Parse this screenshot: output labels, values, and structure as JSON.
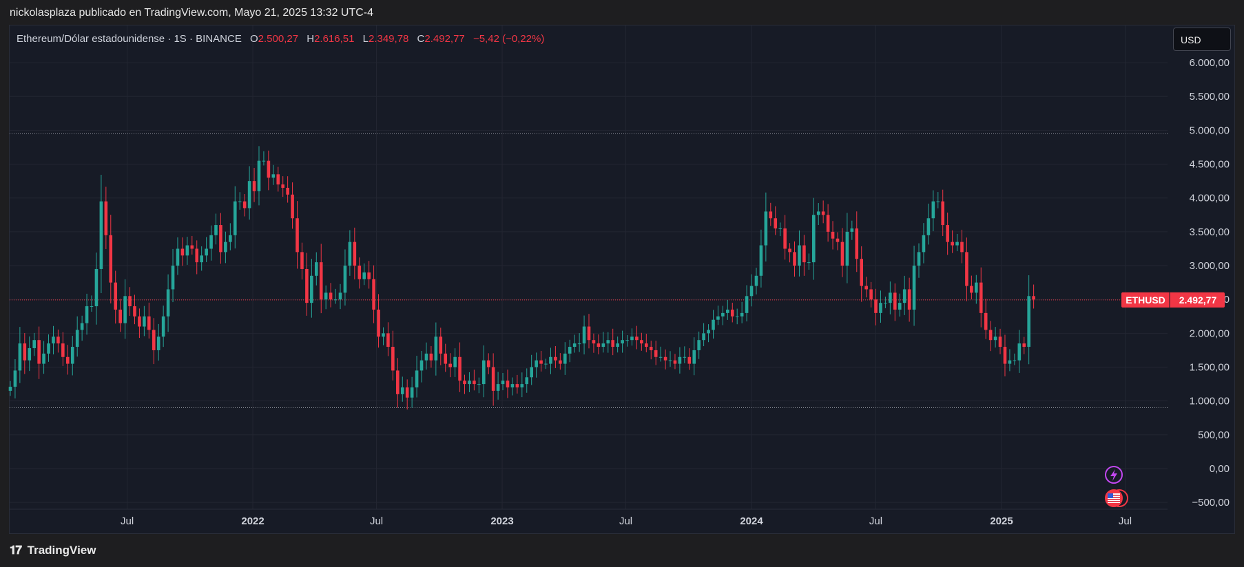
{
  "header": {
    "publisher_line": "nickolasplaza publicado en TradingView.com, Mayo 21, 2025 13:32 UTC-4"
  },
  "legend": {
    "symbol": "Ethereum/Dólar estadounidense · 1S · BINANCE",
    "o_label": "O",
    "o_value": "2.500,27",
    "h_label": "H",
    "h_value": "2.616,51",
    "l_label": "L",
    "l_value": "2.349,78",
    "c_label": "C",
    "c_value": "2.492,77",
    "change": "−5,42 (−0,22%)"
  },
  "currency_button": "USD",
  "price_tag": {
    "symbol": "ETHUSD",
    "value": "2.492,77"
  },
  "footer": {
    "logo_text": "TradingView"
  },
  "colors": {
    "up": "#26a69a",
    "down": "#f23645",
    "background": "#171b26",
    "grid": "#232632",
    "price_line": "#f23645",
    "level_line": "#9598a1"
  },
  "icons": [
    "lightning-event-icon",
    "us-flag-event-icon"
  ],
  "chart_data": {
    "type": "candlestick",
    "interval": "1S",
    "ylim": [
      -600,
      6550
    ],
    "y_ticks": [
      6000,
      5500,
      5000,
      4500,
      4000,
      3500,
      3000,
      2500,
      2000,
      1500,
      1000,
      500,
      0,
      -500
    ],
    "y_tick_labels": [
      "6.000,00",
      "5.500,00",
      "5.000,00",
      "4.500,00",
      "4.000,00",
      "3.500,00",
      "3.000,00",
      "2.500,00",
      "2.000,00",
      "1.500,00",
      "1.000,00",
      "500,00",
      "0,00",
      "−500,00"
    ],
    "x_ticks": [
      {
        "label": "Jul",
        "date": "2021-07-01",
        "bold": false
      },
      {
        "label": "2022",
        "date": "2022-01-01",
        "bold": true
      },
      {
        "label": "Jul",
        "date": "2022-07-01",
        "bold": false
      },
      {
        "label": "2023",
        "date": "2023-01-01",
        "bold": true
      },
      {
        "label": "Jul",
        "date": "2023-07-01",
        "bold": false
      },
      {
        "label": "2024",
        "date": "2024-01-01",
        "bold": true
      },
      {
        "label": "Jul",
        "date": "2024-07-01",
        "bold": false
      },
      {
        "label": "2025",
        "date": "2025-01-01",
        "bold": true
      },
      {
        "label": "Jul",
        "date": "2025-07-01",
        "bold": false
      }
    ],
    "x_range": [
      "2021-01-10",
      "2025-09-01"
    ],
    "first_candle": "2021-01-11",
    "horizontal_levels": [
      4950,
      900
    ],
    "last_price": 2492.77,
    "closes": [
      1210,
      1450,
      1850,
      1600,
      1780,
      1900,
      1550,
      1700,
      1850,
      1950,
      1850,
      1650,
      1550,
      1800,
      2050,
      2150,
      2400,
      2400,
      2950,
      3950,
      3450,
      2750,
      2350,
      2150,
      2550,
      2400,
      2250,
      2100,
      2250,
      2050,
      1750,
      1950,
      2250,
      2650,
      3000,
      3250,
      3150,
      3300,
      3250,
      3050,
      3150,
      3250,
      3450,
      3600,
      3200,
      3350,
      3450,
      3950,
      3950,
      3850,
      4250,
      4100,
      4550,
      4550,
      4300,
      4350,
      4200,
      4150,
      4050,
      3700,
      3200,
      2950,
      2450,
      2850,
      3050,
      2500,
      2600,
      2500,
      2500,
      2600,
      3000,
      3350,
      3000,
      2800,
      2900,
      2800,
      2350,
      1950,
      2000,
      1800,
      1450,
      1100,
      1200,
      1050,
      1200,
      1450,
      1600,
      1700,
      1600,
      1950,
      1700,
      1550,
      1500,
      1650,
      1300,
      1250,
      1300,
      1250,
      1250,
      1600,
      1500,
      1150,
      1250,
      1300,
      1200,
      1250,
      1200,
      1250,
      1350,
      1500,
      1600,
      1550,
      1550,
      1650,
      1600,
      1550,
      1700,
      1800,
      1850,
      1850,
      2100,
      1900,
      1850,
      1800,
      1850,
      1900,
      1800,
      1850,
      1900,
      1900,
      1950,
      1900,
      1850,
      1800,
      1750,
      1650,
      1650,
      1600,
      1600,
      1550,
      1650,
      1650,
      1550,
      1750,
      1900,
      2000,
      2050,
      2200,
      2250,
      2300,
      2350,
      2250,
      2250,
      2300,
      2550,
      2700,
      2850,
      3300,
      3800,
      3700,
      3550,
      3550,
      3250,
      3200,
      3000,
      3300,
      3050,
      3050,
      3750,
      3800,
      3750,
      3500,
      3400,
      3350,
      3000,
      3500,
      3550,
      3100,
      2700,
      2650,
      2500,
      2300,
      2450,
      2450,
      2600,
      2350,
      2450,
      2650,
      2350,
      3000,
      3200,
      3450,
      3700,
      3950,
      3950,
      3600,
      3350,
      3300,
      3350,
      3200,
      2700,
      2600,
      2750,
      2300,
      2050,
      1900,
      1950,
      1800,
      1550,
      1600,
      1600,
      1850,
      1800,
      2550,
      2500
    ]
  }
}
